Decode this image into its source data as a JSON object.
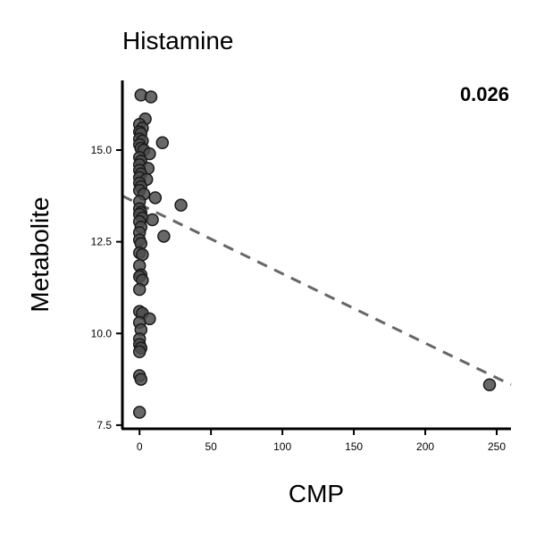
{
  "chart_data": {
    "type": "scatter",
    "title": "Histamine",
    "xlabel": "CMP",
    "ylabel": "Metabolite",
    "annotation": "0.026",
    "xlim": [
      -12,
      260
    ],
    "ylim": [
      7.4,
      16.9
    ],
    "x_ticks": [
      0,
      50,
      100,
      150,
      200,
      250
    ],
    "x_tick_labels": [
      "0",
      "50",
      "100",
      "150",
      "200",
      "250"
    ],
    "y_ticks": [
      7.5,
      10.0,
      12.5,
      15.0
    ],
    "y_tick_labels": [
      "7.5",
      "10.0",
      "12.5",
      "15.0"
    ],
    "grid": false,
    "point_color": "#4d4d4d",
    "trend_color": "#666666",
    "trendline": {
      "x": [
        -12,
        260
      ],
      "y": [
        13.75,
        8.6
      ]
    },
    "points": [
      {
        "x": 1,
        "y": 16.5
      },
      {
        "x": 8,
        "y": 16.45
      },
      {
        "x": 4,
        "y": 15.85
      },
      {
        "x": 0,
        "y": 15.7
      },
      {
        "x": 2,
        "y": 15.6
      },
      {
        "x": 0,
        "y": 15.5
      },
      {
        "x": 1,
        "y": 15.45
      },
      {
        "x": 0,
        "y": 15.3
      },
      {
        "x": 2,
        "y": 15.25
      },
      {
        "x": 16,
        "y": 15.2
      },
      {
        "x": 0,
        "y": 15.15
      },
      {
        "x": 1,
        "y": 15.05
      },
      {
        "x": 3,
        "y": 15.0
      },
      {
        "x": 7,
        "y": 14.9
      },
      {
        "x": 0,
        "y": 14.8
      },
      {
        "x": 1,
        "y": 14.7
      },
      {
        "x": 0,
        "y": 14.6
      },
      {
        "x": 6,
        "y": 14.5
      },
      {
        "x": 0,
        "y": 14.45
      },
      {
        "x": 1,
        "y": 14.35
      },
      {
        "x": 0,
        "y": 14.25
      },
      {
        "x": 5,
        "y": 14.2
      },
      {
        "x": 0,
        "y": 14.1
      },
      {
        "x": 1,
        "y": 14.0
      },
      {
        "x": 0,
        "y": 13.9
      },
      {
        "x": 3,
        "y": 13.8
      },
      {
        "x": 11,
        "y": 13.7
      },
      {
        "x": 0,
        "y": 13.6
      },
      {
        "x": 29,
        "y": 13.5
      },
      {
        "x": 0,
        "y": 13.4
      },
      {
        "x": 1,
        "y": 13.3
      },
      {
        "x": 0,
        "y": 13.25
      },
      {
        "x": 2,
        "y": 13.15
      },
      {
        "x": 9,
        "y": 13.1
      },
      {
        "x": 0,
        "y": 13.05
      },
      {
        "x": 1,
        "y": 12.9
      },
      {
        "x": 0,
        "y": 12.75
      },
      {
        "x": 17,
        "y": 12.65
      },
      {
        "x": 0,
        "y": 12.55
      },
      {
        "x": 1,
        "y": 12.45
      },
      {
        "x": 0,
        "y": 12.2
      },
      {
        "x": 2,
        "y": 12.15
      },
      {
        "x": 0,
        "y": 11.85
      },
      {
        "x": 1,
        "y": 11.6
      },
      {
        "x": 0,
        "y": 11.55
      },
      {
        "x": 2,
        "y": 11.45
      },
      {
        "x": 0,
        "y": 11.2
      },
      {
        "x": 0,
        "y": 10.6
      },
      {
        "x": 2,
        "y": 10.55
      },
      {
        "x": 7,
        "y": 10.4
      },
      {
        "x": 0,
        "y": 10.3
      },
      {
        "x": 1,
        "y": 10.1
      },
      {
        "x": 0,
        "y": 9.85
      },
      {
        "x": 0,
        "y": 9.7
      },
      {
        "x": 1,
        "y": 9.6
      },
      {
        "x": 0,
        "y": 9.5
      },
      {
        "x": 0,
        "y": 8.85
      },
      {
        "x": 1,
        "y": 8.75
      },
      {
        "x": 0,
        "y": 7.85
      },
      {
        "x": 245,
        "y": 8.6
      }
    ]
  }
}
